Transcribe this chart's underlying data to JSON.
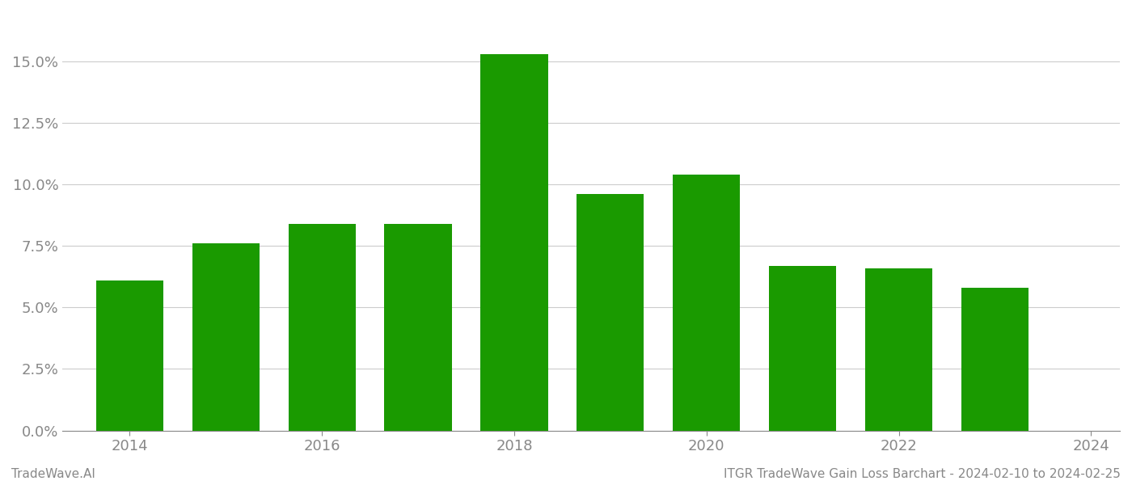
{
  "years": [
    2014,
    2015,
    2016,
    2017,
    2018,
    2019,
    2020,
    2021,
    2022,
    2023
  ],
  "values": [
    0.061,
    0.076,
    0.084,
    0.084,
    0.153,
    0.096,
    0.104,
    0.067,
    0.066,
    0.058
  ],
  "bar_color": "#1a9a00",
  "background_color": "#ffffff",
  "grid_color": "#cccccc",
  "ylim": [
    0,
    0.17
  ],
  "yticks": [
    0.0,
    0.025,
    0.05,
    0.075,
    0.1,
    0.125,
    0.15
  ],
  "xtick_years": [
    2014,
    2016,
    2018,
    2020,
    2022,
    2024
  ],
  "xlabel_fontsize": 13,
  "ylabel_fontsize": 13,
  "tick_color": "#888888",
  "footer_left": "TradeWave.AI",
  "footer_right": "ITGR TradeWave Gain Loss Barchart - 2024-02-10 to 2024-02-25",
  "footer_fontsize": 11,
  "bar_width": 0.7
}
